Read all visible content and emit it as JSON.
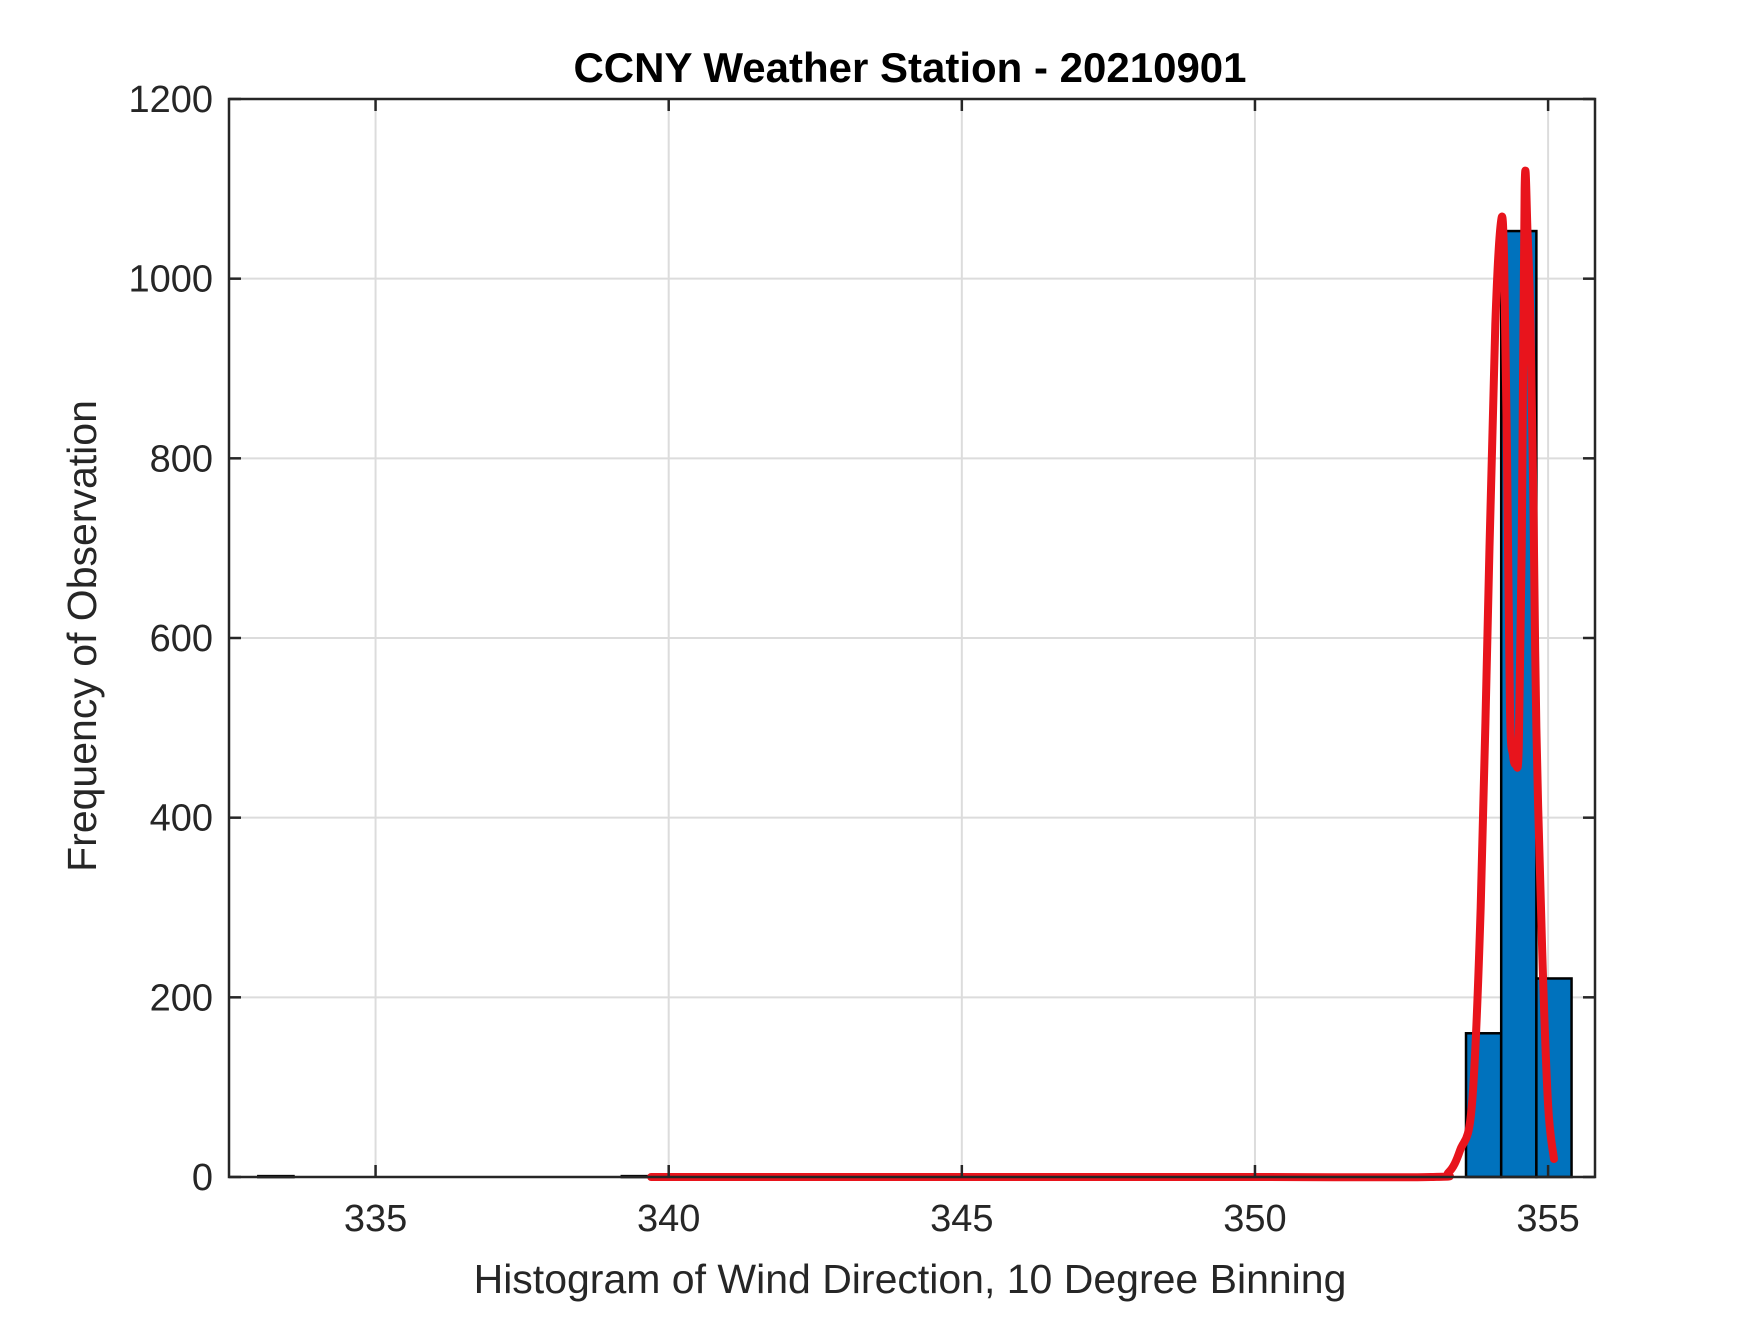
{
  "chart_data": {
    "type": "bar",
    "title": "CCNY Weather Station - 20210901",
    "xlabel": "Histogram of Wind Direction, 10 Degree Binning",
    "ylabel": "Frequency of Observation",
    "xlim": [
      332.5,
      355.8
    ],
    "ylim": [
      0,
      1200
    ],
    "xticks": [
      335,
      340,
      345,
      350,
      355
    ],
    "yticks": [
      0,
      200,
      400,
      600,
      800,
      1000,
      1200
    ],
    "grid": true,
    "bar_color": "#0072BD",
    "bar_edge_color": "#000000",
    "bars": [
      {
        "x0": 333.0,
        "x1": 333.6,
        "value": 1
      },
      {
        "x0": 339.2,
        "x1": 339.8,
        "value": 1
      },
      {
        "x0": 353.6,
        "x1": 354.2,
        "value": 160
      },
      {
        "x0": 354.2,
        "x1": 354.8,
        "value": 1053
      },
      {
        "x0": 354.8,
        "x1": 355.4,
        "value": 221
      }
    ],
    "series": [
      {
        "type": "line",
        "color": "#E8141C",
        "x": [
          339.7,
          345.0,
          350.0,
          353.0,
          353.3,
          353.5,
          353.7,
          353.85,
          354.0,
          354.1,
          354.2,
          354.25,
          354.3,
          354.35,
          354.4,
          354.45,
          354.5,
          354.55,
          354.6,
          354.65,
          354.7,
          354.75,
          354.8,
          354.9,
          355.0,
          355.1
        ],
        "y": [
          0,
          0,
          0,
          0,
          5,
          30,
          80,
          300,
          700,
          950,
          1065,
          1020,
          800,
          520,
          470,
          460,
          480,
          700,
          1100,
          1050,
          950,
          750,
          500,
          250,
          80,
          20
        ]
      }
    ]
  }
}
